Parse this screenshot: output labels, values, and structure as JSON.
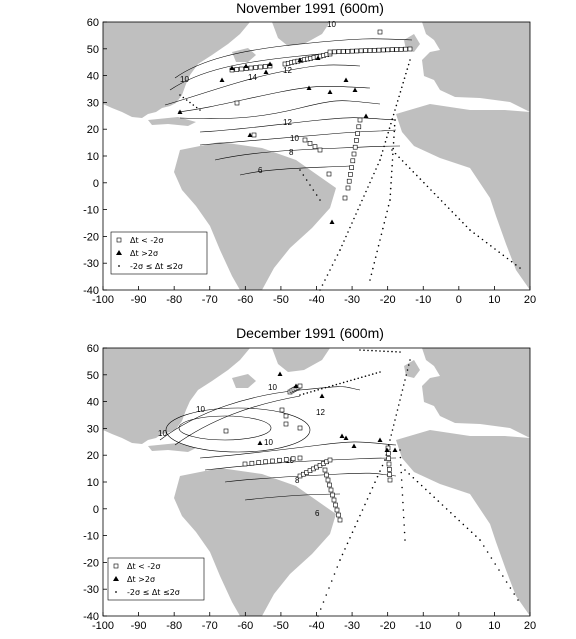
{
  "panels": [
    {
      "title": "November 1991 (600m)",
      "x_ticks": [
        "-100",
        "-90",
        "-80",
        "-70",
        "-60",
        "-50",
        "-40",
        "-30",
        "-20",
        "-10",
        "0",
        "10",
        "20"
      ],
      "y_ticks": [
        "60",
        "50",
        "40",
        "30",
        "20",
        "10",
        "0",
        "-10",
        "-20",
        "-30",
        "-40"
      ],
      "legend": [
        {
          "marker": "open-square",
          "label": "Δt < -2σ"
        },
        {
          "marker": "filled-triangle",
          "label": "Δt  >2σ"
        },
        {
          "marker": "dot",
          "label": "-2σ ≤ Δt ≤2σ"
        }
      ],
      "contour_labels": [
        "10",
        "14",
        "12",
        "10",
        "8",
        "6",
        "10",
        "12"
      ]
    },
    {
      "title": "December 1991 (600m)",
      "x_ticks": [
        "-100",
        "-90",
        "-80",
        "-70",
        "-60",
        "-50",
        "-40",
        "-30",
        "-20",
        "-10",
        "0",
        "10",
        "20"
      ],
      "y_ticks": [
        "60",
        "50",
        "40",
        "30",
        "20",
        "10",
        "0",
        "-10",
        "-20",
        "-30",
        "-40"
      ],
      "legend": [
        {
          "marker": "open-square",
          "label": "Δt < -2σ"
        },
        {
          "marker": "filled-triangle",
          "label": "Δt  >2σ"
        },
        {
          "marker": "dot",
          "label": "-2σ ≤ Δt ≤2σ"
        }
      ],
      "contour_labels": [
        "10",
        "10",
        "12",
        "10",
        "10",
        "8",
        "6",
        "10"
      ]
    }
  ],
  "colors": {
    "land": "#bfbfbf",
    "frame": "#000000",
    "marker": "#000000"
  }
}
